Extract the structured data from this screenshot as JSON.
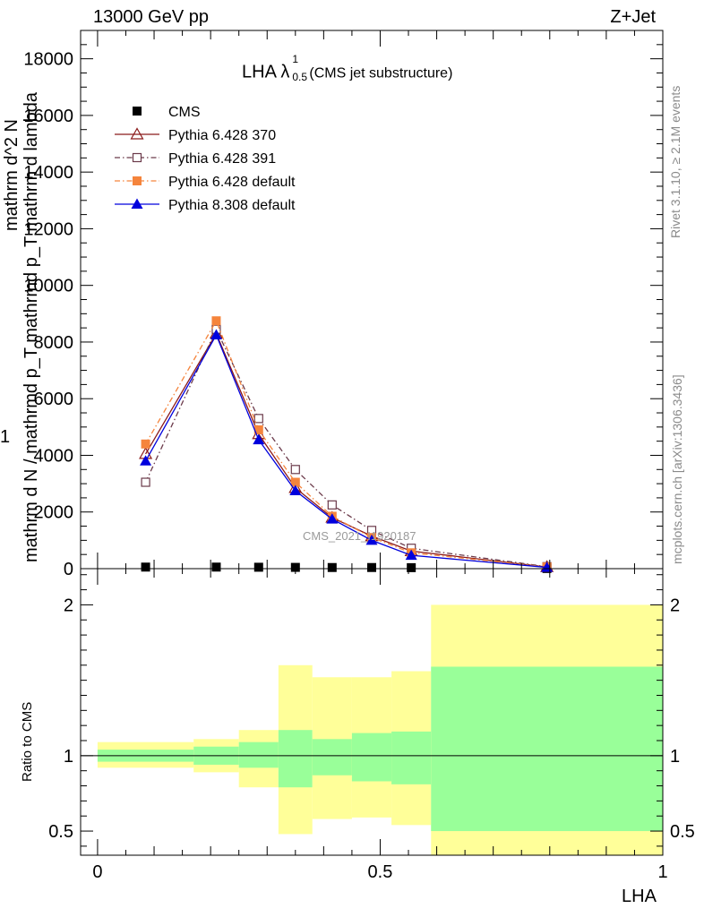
{
  "header": {
    "left": "13000 GeV pp",
    "right": "Z+Jet"
  },
  "side": {
    "rivet": "Rivet 3.1.10, ≥ 2.1M events",
    "mcplots": "mcplots.cern.ch [arXiv:1306.3436]"
  },
  "watermark": "CMS_2021_I1920187",
  "chart_data": [
    {
      "type": "line",
      "title_main": "LHA λ",
      "title_sup": "1",
      "title_sub": "0.5",
      "title_suffix": "(CMS jet substructure)",
      "ylabel_numerator": "1",
      "ylabel_denominator": "mathrm d N / mathrmd p_T mathrmd p_T mathrm d lambda",
      "ylabel_top": "mathrm d^2 N",
      "ylim": [
        0,
        19000
      ],
      "yticks": [
        0,
        2000,
        4000,
        6000,
        8000,
        10000,
        12000,
        14000,
        16000,
        18000
      ],
      "ytick_labels": [
        "0",
        "2000",
        "4000",
        "6000",
        "8000",
        "10000",
        "12000",
        "14000",
        "16000",
        "18000"
      ],
      "xlim": [
        -0.03,
        1.0
      ],
      "x": [
        0.085,
        0.21,
        0.285,
        0.35,
        0.415,
        0.485,
        0.555,
        0.795
      ],
      "series": [
        {
          "name": "CMS",
          "color": "#000000",
          "marker": "square-filled",
          "dash": "none",
          "values": [
            55,
            55,
            50,
            45,
            40,
            40,
            35,
            5
          ]
        },
        {
          "name": "Pythia 6.428 370",
          "color": "#8b1a1a",
          "marker": "triangle-open",
          "dash": "solid",
          "values": [
            4050,
            8300,
            4750,
            2850,
            1800,
            1150,
            620,
            60
          ]
        },
        {
          "name": "Pythia 6.428 391",
          "color": "#6b3a4a",
          "marker": "square-open",
          "dash": "dashdot",
          "values": [
            3050,
            8450,
            5300,
            3500,
            2250,
            1350,
            720,
            70
          ]
        },
        {
          "name": "Pythia 6.428 default",
          "color": "#f5843c",
          "marker": "square-filled",
          "dash": "dashdot",
          "values": [
            4400,
            8750,
            4900,
            3050,
            1850,
            1100,
            560,
            60
          ]
        },
        {
          "name": "Pythia 8.308 default",
          "color": "#0000dd",
          "marker": "triangle-filled",
          "dash": "solid",
          "values": [
            3800,
            8250,
            4550,
            2750,
            1750,
            1000,
            470,
            45
          ]
        }
      ]
    },
    {
      "type": "area",
      "ylabel": "Ratio to CMS",
      "xlabel": "LHA",
      "ylim": [
        0.34,
        2.24
      ],
      "xlim": [
        -0.03,
        1.0
      ],
      "yticks": [
        0.5,
        1,
        2
      ],
      "ytick_labels": [
        "0.5",
        "1",
        "2"
      ],
      "xticks": [
        0,
        0.5,
        1
      ],
      "xtick_labels": [
        "0",
        "0.5",
        "1"
      ],
      "reference_line": 1,
      "bins": [
        0,
        0.17,
        0.25,
        0.32,
        0.38,
        0.45,
        0.52,
        0.59,
        1.0
      ],
      "green_band": [
        [
          0.96,
          1.04
        ],
        [
          0.94,
          1.06
        ],
        [
          0.92,
          1.09
        ],
        [
          0.79,
          1.17
        ],
        [
          0.87,
          1.11
        ],
        [
          0.83,
          1.15
        ],
        [
          0.81,
          1.16
        ],
        [
          0.5,
          1.59
        ]
      ],
      "yellow_band": [
        [
          0.92,
          1.09
        ],
        [
          0.89,
          1.11
        ],
        [
          0.79,
          1.17
        ],
        [
          0.48,
          1.6
        ],
        [
          0.58,
          1.52
        ],
        [
          0.59,
          1.52
        ],
        [
          0.54,
          1.56
        ],
        [
          0.34,
          2.0
        ]
      ],
      "green_color": "#99ff99",
      "yellow_color": "#ffff99"
    }
  ]
}
